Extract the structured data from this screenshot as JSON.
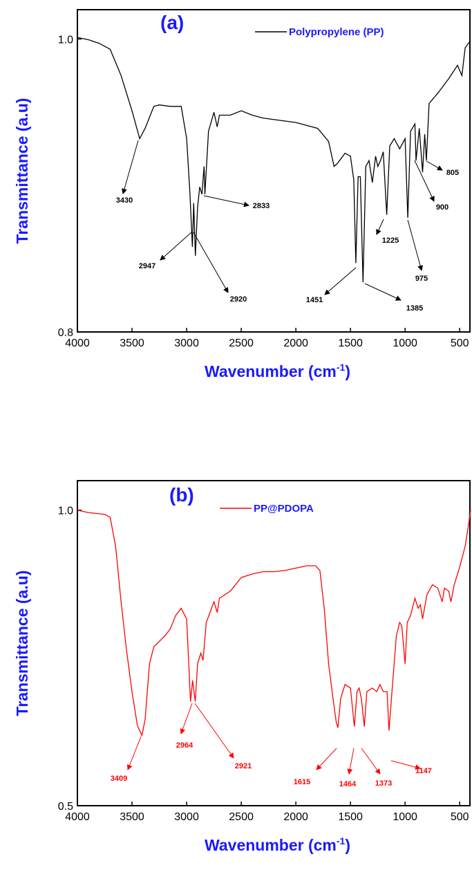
{
  "chart_data": [
    {
      "type": "line",
      "panel_label": "(a)",
      "y_label": "Transmittance (a.u)",
      "x_label": "Wavenumber (cm",
      "x_label_sup": "-1",
      "x_label_end": ")",
      "xlim": [
        4000,
        400
      ],
      "ylim": [
        0.8,
        1.02
      ],
      "xticks": [
        4000,
        3500,
        3000,
        2500,
        2000,
        1500,
        1000,
        500
      ],
      "yticks": [
        0.8,
        {
          "value": 1.0,
          "label": "1.0"
        }
      ],
      "x": [
        4000,
        3900,
        3800,
        3700,
        3600,
        3500,
        3430,
        3380,
        3300,
        3250,
        3150,
        3050,
        3000,
        2970,
        2947,
        2935,
        2920,
        2900,
        2880,
        2860,
        2840,
        2833,
        2800,
        2750,
        2720,
        2700,
        2600,
        2500,
        2400,
        2300,
        2200,
        2000,
        1800,
        1700,
        1650,
        1620,
        1550,
        1500,
        1470,
        1451,
        1430,
        1410,
        1385,
        1360,
        1330,
        1300,
        1270,
        1250,
        1225,
        1200,
        1168,
        1140,
        1100,
        1050,
        1000,
        975,
        950,
        910,
        900,
        870,
        840,
        820,
        805,
        780,
        700,
        600,
        520,
        480,
        450,
        400
      ],
      "series": [
        {
          "name": "Polypropylene (PP)",
          "color": "#000000",
          "values": [
            1.001,
            0.9995,
            0.997,
            0.993,
            0.975,
            0.951,
            0.932,
            0.939,
            0.954,
            0.955,
            0.954,
            0.954,
            0.932,
            0.895,
            0.858,
            0.888,
            0.852,
            0.885,
            0.899,
            0.894,
            0.913,
            0.894,
            0.937,
            0.95,
            0.94,
            0.948,
            0.948,
            0.951,
            0.948,
            0.946,
            0.945,
            0.943,
            0.939,
            0.93,
            0.913,
            0.915,
            0.922,
            0.92,
            0.904,
            0.847,
            0.906,
            0.906,
            0.834,
            0.913,
            0.917,
            0.902,
            0.92,
            0.913,
            0.917,
            0.923,
            0.88,
            0.927,
            0.932,
            0.925,
            0.932,
            0.878,
            0.937,
            0.942,
            0.917,
            0.939,
            0.909,
            0.935,
            0.917,
            0.956,
            0.963,
            0.973,
            0.982,
            0.975,
            0.994,
            0.999
          ]
        }
      ],
      "annotations": [
        3430,
        2947,
        2920,
        2833,
        1451,
        1385,
        1225,
        975,
        900,
        805
      ]
    },
    {
      "type": "line",
      "panel_label": "(b)",
      "y_label": "Transmittance (a.u)",
      "x_label": "Wavenumber (cm",
      "x_label_sup": "-1",
      "x_label_end": ")",
      "xlim": [
        4000,
        400
      ],
      "ylim": [
        0.5,
        1.05
      ],
      "xticks": [
        4000,
        3500,
        3000,
        2500,
        2000,
        1500,
        1000,
        500
      ],
      "yticks": [
        0.5,
        {
          "value": 1.0,
          "label": "1.0"
        }
      ],
      "x": [
        4000,
        3900,
        3800,
        3750,
        3700,
        3650,
        3600,
        3550,
        3500,
        3450,
        3409,
        3380,
        3340,
        3300,
        3200,
        3150,
        3100,
        3050,
        3000,
        2964,
        2945,
        2921,
        2900,
        2870,
        2850,
        2820,
        2750,
        2720,
        2700,
        2600,
        2500,
        2400,
        2300,
        2200,
        2100,
        2000,
        1900,
        1820,
        1780,
        1740,
        1700,
        1660,
        1630,
        1615,
        1590,
        1550,
        1500,
        1464,
        1440,
        1420,
        1400,
        1373,
        1350,
        1300,
        1260,
        1230,
        1200,
        1165,
        1147,
        1120,
        1080,
        1050,
        1030,
        1000,
        980,
        950,
        910,
        880,
        860,
        840,
        800,
        750,
        700,
        660,
        640,
        600,
        580,
        550,
        500,
        450,
        420,
        400
      ],
      "series": [
        {
          "name": "PP@PDOPA",
          "color": "#ff0000",
          "values": [
            1.0,
            0.996,
            0.994,
            0.993,
            0.988,
            0.939,
            0.845,
            0.763,
            0.693,
            0.635,
            0.619,
            0.646,
            0.74,
            0.769,
            0.787,
            0.799,
            0.822,
            0.834,
            0.816,
            0.676,
            0.712,
            0.676,
            0.74,
            0.758,
            0.746,
            0.81,
            0.845,
            0.827,
            0.851,
            0.863,
            0.886,
            0.892,
            0.896,
            0.896,
            0.898,
            0.902,
            0.906,
            0.906,
            0.898,
            0.834,
            0.74,
            0.681,
            0.641,
            0.632,
            0.681,
            0.705,
            0.699,
            0.634,
            0.693,
            0.699,
            0.681,
            0.634,
            0.693,
            0.699,
            0.693,
            0.705,
            0.693,
            0.693,
            0.627,
            0.693,
            0.787,
            0.81,
            0.804,
            0.74,
            0.81,
            0.822,
            0.851,
            0.834,
            0.84,
            0.816,
            0.857,
            0.874,
            0.868,
            0.845,
            0.868,
            0.863,
            0.845,
            0.874,
            0.904,
            0.939,
            0.974,
            1.0
          ]
        }
      ],
      "annotations": [
        3409,
        2964,
        2921,
        1615,
        1464,
        1373,
        1147
      ]
    }
  ]
}
